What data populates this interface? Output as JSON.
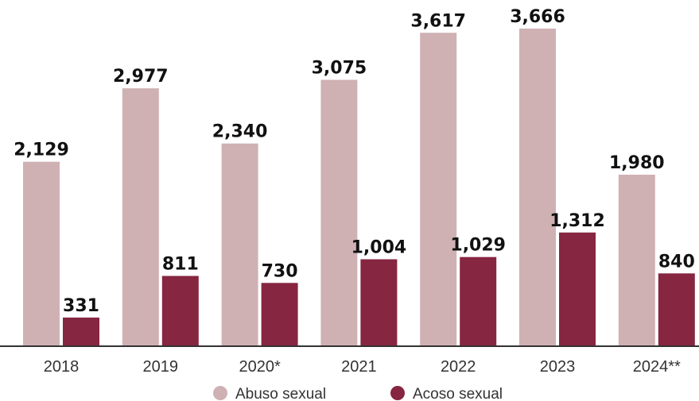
{
  "chart_data": {
    "type": "bar",
    "categories": [
      "2018",
      "2019",
      "2020*",
      "2021",
      "2022",
      "2023",
      "2024**"
    ],
    "series": [
      {
        "name": "Abuso sexual",
        "color": "#cfb1b4",
        "values": [
          2129,
          2977,
          2340,
          3075,
          3617,
          3666,
          1980
        ],
        "labels": [
          "2,129",
          "2,977",
          "2,340",
          "3,075",
          "3,617",
          "3,666",
          "1,980"
        ]
      },
      {
        "name": "Acoso sexual",
        "color": "#862641",
        "values": [
          331,
          811,
          730,
          1004,
          1029,
          1312,
          840
        ],
        "labels": [
          "331",
          "811",
          "730",
          "1,004",
          "1,029",
          "1,312",
          "840"
        ]
      }
    ],
    "ylim": [
      0,
      3666
    ],
    "grid": false,
    "legend_position": "bottom-center"
  }
}
